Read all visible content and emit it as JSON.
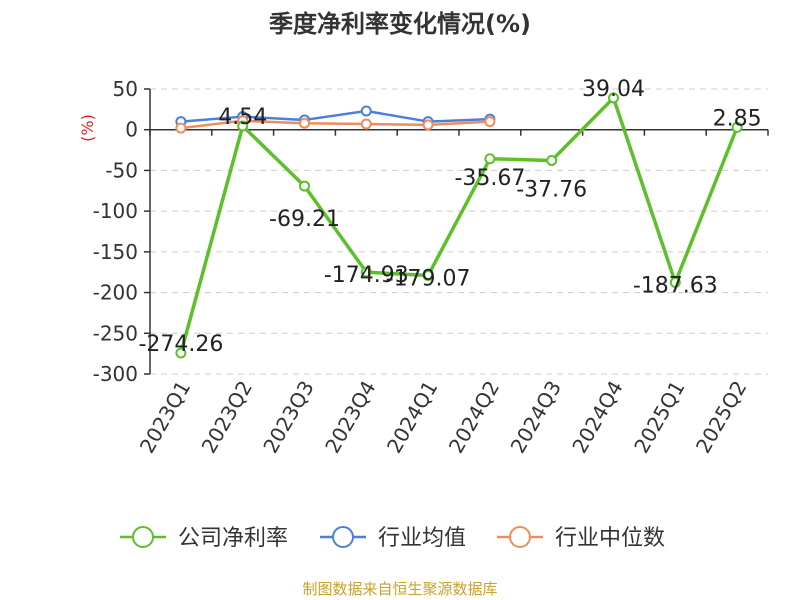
{
  "chart_data": {
    "type": "line",
    "title": "季度净利率变化情况(%)",
    "ylabel": "(%)",
    "categories": [
      "2023Q1",
      "2023Q2",
      "2023Q3",
      "2023Q4",
      "2024Q1",
      "2024Q2",
      "2024Q3",
      "2024Q4",
      "2025Q1",
      "2025Q2"
    ],
    "y_ticks": [
      "50",
      "0",
      "-50",
      "-100",
      "-150",
      "-200",
      "-250",
      "-300"
    ],
    "ylim": [
      -300,
      50
    ],
    "grid": true,
    "legend_position": "bottom",
    "series": [
      {
        "name": "公司净利率",
        "color": "#5cc02a",
        "values": [
          -274.26,
          4.54,
          -69.21,
          -174.93,
          -179.07,
          -35.67,
          -37.76,
          39.04,
          -187.63,
          2.85
        ],
        "labels": [
          "-274.26",
          "4.54",
          "-69.21",
          "-174.93",
          "-179.07",
          "-35.67",
          "-37.76",
          "39.04",
          "-187.63",
          "2.85"
        ]
      },
      {
        "name": "行业均值",
        "color": "#4a7fdc",
        "values": [
          10,
          16,
          12,
          23,
          10,
          13,
          null,
          null,
          null,
          null
        ]
      },
      {
        "name": "行业中位数",
        "color": "#f08c5a",
        "values": [
          2,
          11,
          8,
          7,
          6,
          10,
          null,
          null,
          null,
          null
        ]
      }
    ]
  },
  "source": "制图数据来自恒生聚源数据库"
}
